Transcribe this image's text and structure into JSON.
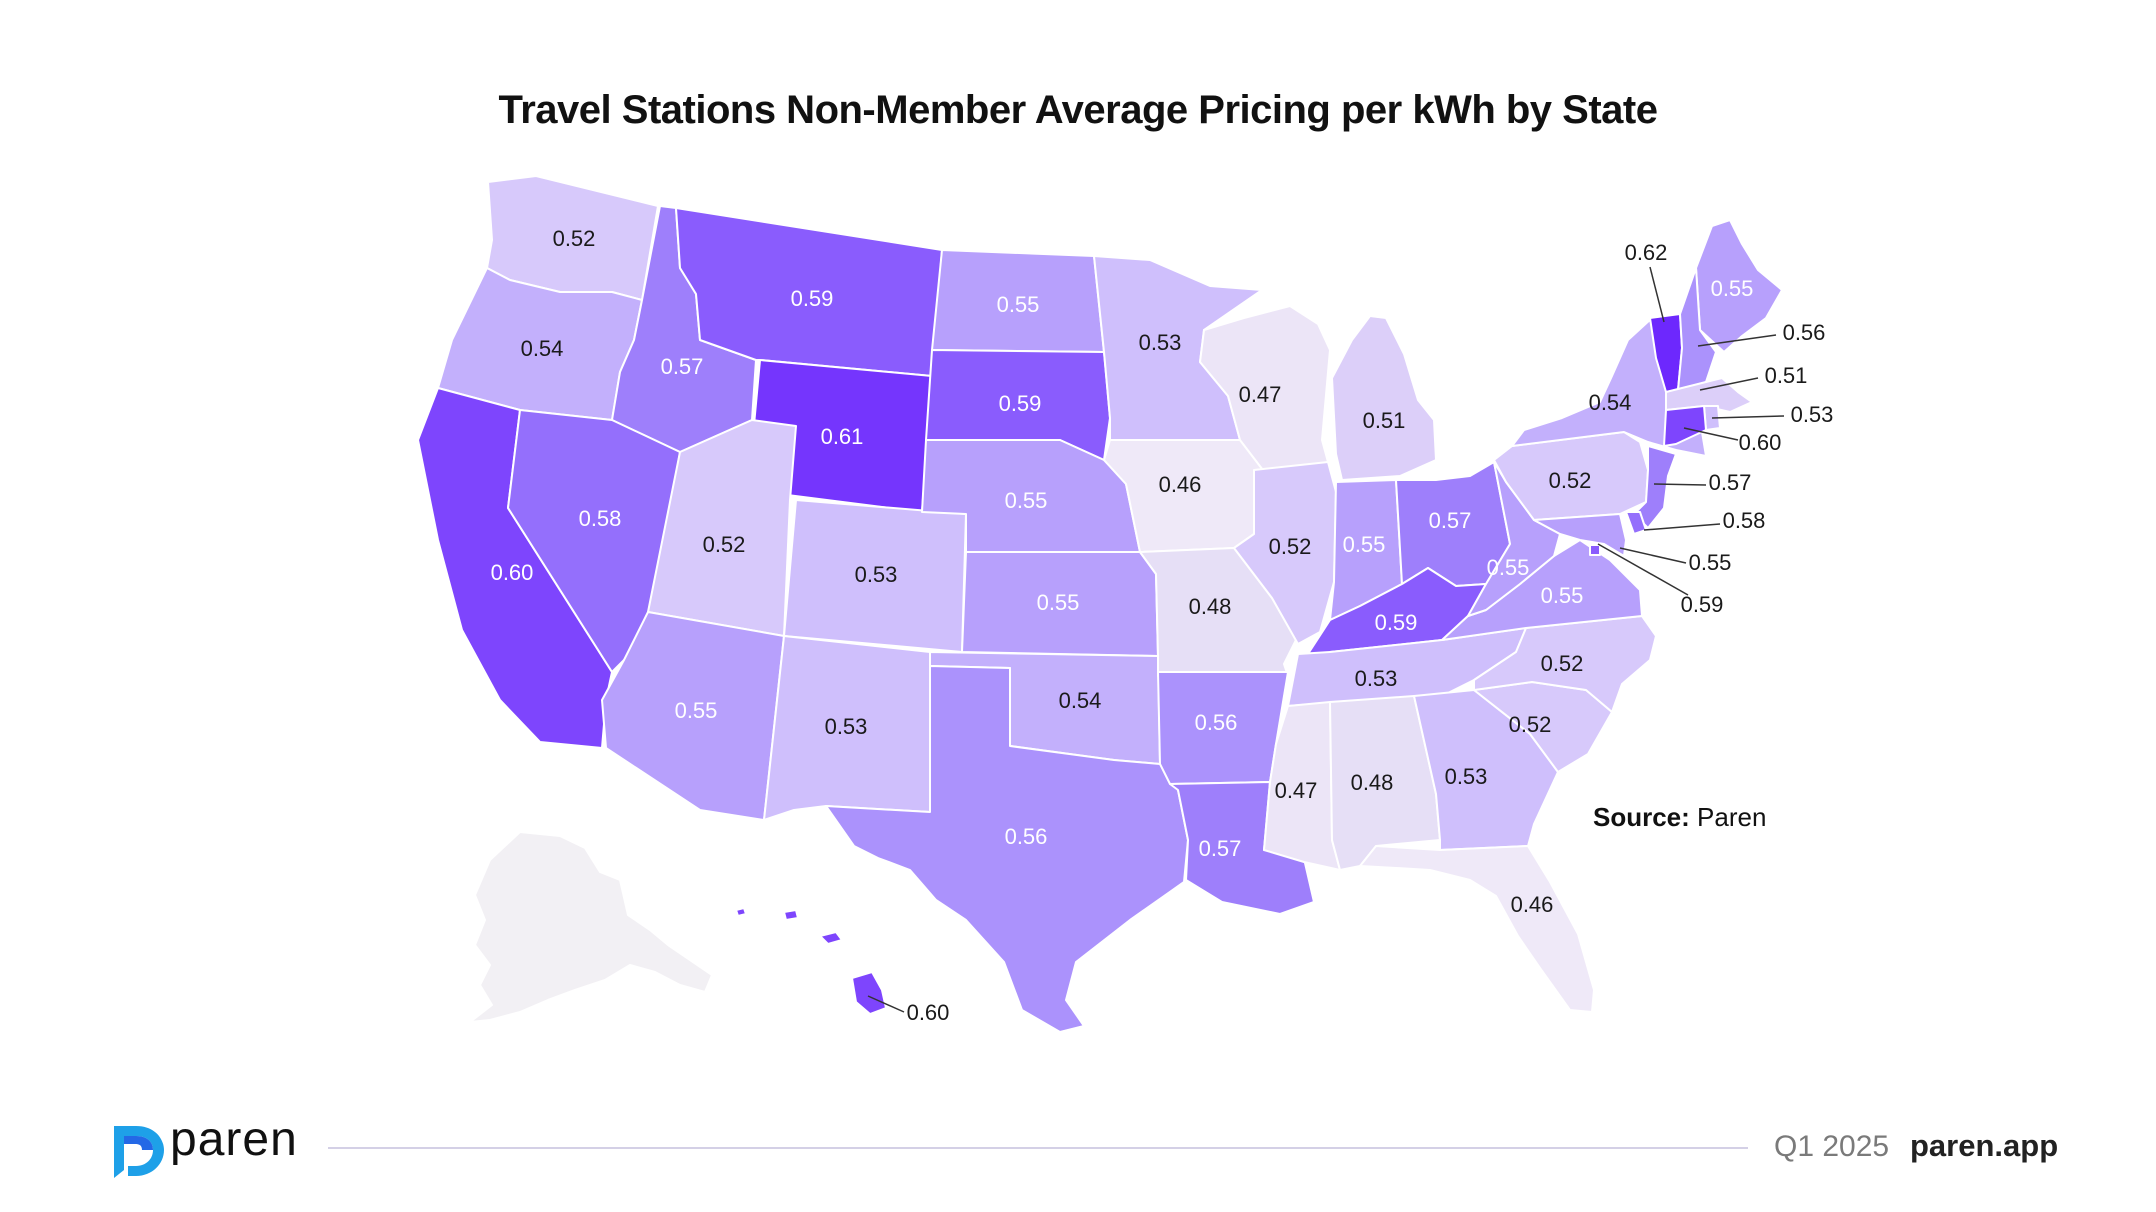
{
  "title": "Travel Stations Non-Member Average Pricing per kWh by State",
  "source": {
    "label": "Source:",
    "value": "Paren"
  },
  "footer": {
    "brand": "paren",
    "period": "Q1 2025",
    "site": "paren.app"
  },
  "icons": {
    "logo": "paren-logo-icon"
  },
  "colors": {
    "0.46": "#efe9f8",
    "0.47": "#ece5f7",
    "0.48": "#e6dff6",
    "0.51": "#dccff9",
    "0.52": "#d7c9fb",
    "0.53": "#cfbffc",
    "0.54": "#c3b0fc",
    "0.55": "#b7a0fc",
    "0.56": "#ab92fc",
    "0.57": "#9e7ffb",
    "0.58": "#946ffc",
    "0.59": "#8a5cfd",
    "0.60": "#7e45fd",
    "0.61": "#7535fd",
    "0.62": "#6d28fd",
    "nodata": "#f2f0f4"
  },
  "chart_data": {
    "type": "choropleth",
    "title": "Travel Stations Non-Member Average Pricing per kWh by State",
    "values": {
      "WA": "0.52",
      "OR": "0.54",
      "CA": "0.60",
      "ID": "0.57",
      "NV": "0.58",
      "MT": "0.59",
      "WY": "0.61",
      "UT": "0.52",
      "AZ": "0.55",
      "CO": "0.53",
      "NM": "0.53",
      "ND": "0.55",
      "SD": "0.59",
      "NE": "0.55",
      "KS": "0.55",
      "OK": "0.54",
      "TX": "0.56",
      "MN": "0.53",
      "IA": "0.46",
      "MO": "0.48",
      "AR": "0.56",
      "LA": "0.57",
      "WI": "0.47",
      "IL": "0.52",
      "MI": "0.51",
      "IN": "0.55",
      "OH": "0.57",
      "KY": "0.59",
      "TN": "0.53",
      "MS": "0.47",
      "AL": "0.48",
      "GA": "0.53",
      "FL": "0.46",
      "SC": "0.52",
      "NC": "0.52",
      "VA": "0.55",
      "WV": "0.55",
      "PA": "0.52",
      "NY": "0.54",
      "ME": "0.55",
      "VT": "0.62",
      "NH": "0.56",
      "MA": "0.51",
      "RI": "0.53",
      "CT": "0.60",
      "NJ": "0.57",
      "DE": "0.58",
      "MD": "0.55",
      "DC": "0.59",
      "HI": "0.60"
    },
    "no_data": [
      "AK"
    ]
  }
}
